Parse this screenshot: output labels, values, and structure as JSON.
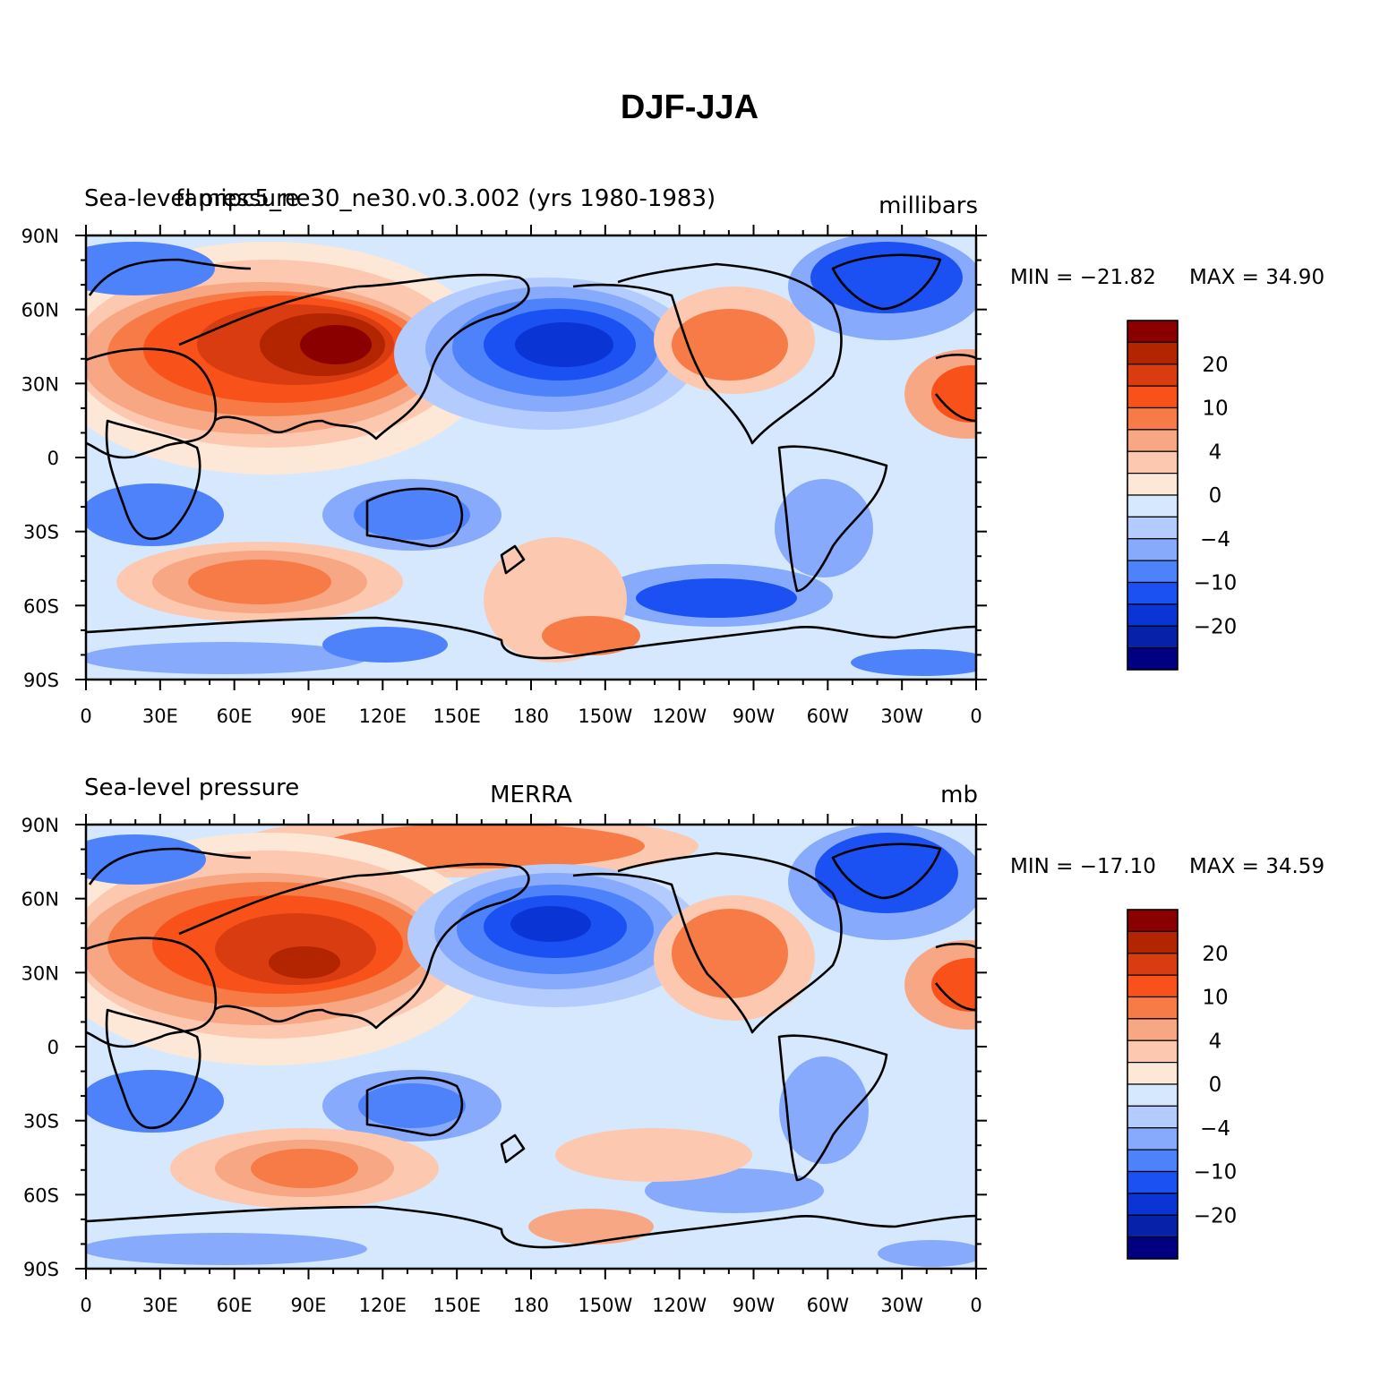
{
  "figure_title": "DJF-JJA",
  "chart_data": [
    {
      "type": "heatmap",
      "variable": "Sea-level pressure",
      "case": "famipc5_ne30_ne30.v0.3.002 (yrs 1980-1983)",
      "units": "millibars",
      "min_label": "MIN = −21.82",
      "max_label": "MAX = 34.90",
      "min": -21.82,
      "max": 34.9,
      "field": "model"
    },
    {
      "type": "heatmap",
      "variable": "Sea-level pressure",
      "case": "MERRA",
      "units": "mb",
      "min_label": "MIN = −17.10",
      "max_label": "MAX = 34.59",
      "min": -17.1,
      "max": 34.59,
      "field": "obs"
    }
  ],
  "x_ticks": [
    "0",
    "30E",
    "60E",
    "90E",
    "120E",
    "150E",
    "180",
    "150W",
    "120W",
    "90W",
    "60W",
    "30W",
    "0"
  ],
  "y_ticks": [
    "90N",
    "60N",
    "30N",
    "0",
    "30S",
    "60S",
    "90S"
  ],
  "colorbar": {
    "levels": [
      -30,
      -20,
      -15,
      -10,
      -8,
      -4,
      -2,
      0,
      2,
      4,
      8,
      10,
      15,
      20,
      30
    ],
    "labels": [
      "20",
      "10",
      "4",
      "0",
      "−4",
      "−10",
      "−20"
    ],
    "colors": [
      "#8a0000",
      "#b32400",
      "#d83c10",
      "#f8521a",
      "#f67b47",
      "#f8a784",
      "#fcc9b0",
      "#fde8d8",
      "#d6e8fe",
      "#b3ccfd",
      "#87aafc",
      "#4d82fb",
      "#1b50f3",
      "#0b34d4",
      "#0722a8",
      "#000080"
    ]
  }
}
